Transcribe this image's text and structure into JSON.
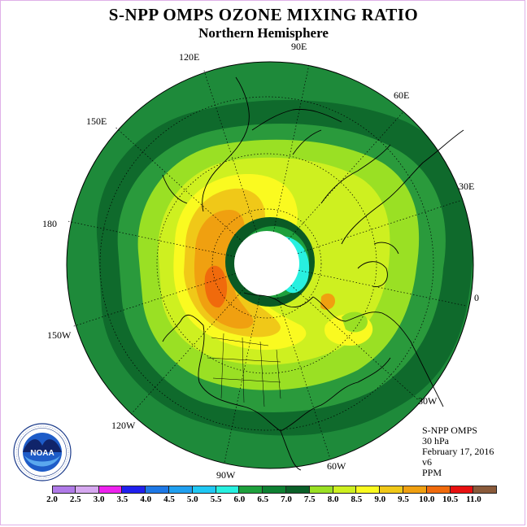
{
  "header": {
    "title": "S-NPP OMPS OZONE MIXING RATIO",
    "subtitle": "Northern Hemisphere"
  },
  "map": {
    "projection": "north polar stereographic",
    "longitude_labels": [
      "90E",
      "60E",
      "30E",
      "0",
      "30W",
      "60W",
      "90W",
      "120W",
      "150W",
      "180",
      "150E",
      "120E"
    ],
    "background_color": "#1e8a3a",
    "no_data_color": "#ffffff"
  },
  "info": {
    "instrument": "S-NPP OMPS",
    "level": "30 hPa",
    "date": "February 17, 2016",
    "version": "v6",
    "units": "PPM"
  },
  "colorbar": {
    "colors": [
      "#b07ae8",
      "#d6a8f0",
      "#ee22ee",
      "#2020ee",
      "#1e78e6",
      "#20a0f0",
      "#20c8f4",
      "#28f0e0",
      "#1ea03c",
      "#0e8032",
      "#0a6028",
      "#9ae024",
      "#cef020",
      "#fafa20",
      "#f0c818",
      "#f0a010",
      "#f06a0c",
      "#e81010",
      "#8a5a3a"
    ],
    "labels": [
      "2.0",
      "2.5",
      "3.0",
      "3.5",
      "4.0",
      "4.5",
      "5.0",
      "5.5",
      "6.0",
      "6.5",
      "7.0",
      "7.5",
      "8.0",
      "8.5",
      "9.0",
      "9.5",
      "10.0",
      "10.5",
      "11.0"
    ]
  },
  "logo": {
    "text": "NOAA",
    "ring_text": "NATIONAL OCEANIC AND ATMOSPHERIC ADMINISTRATION · U.S. DEPARTMENT OF COMMERCE"
  }
}
